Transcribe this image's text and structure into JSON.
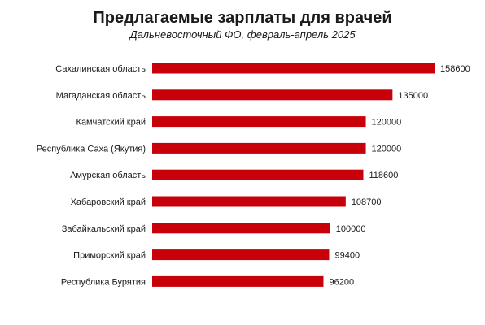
{
  "chart_data": {
    "type": "bar",
    "orientation": "horizontal",
    "title": "Предлагаемые зарплаты для врачей",
    "subtitle": "Дальневосточный ФО, февраль-апрель 2025",
    "categories": [
      "Сахалинская область",
      "Магаданская область",
      "Камчатский край",
      "Республика Саха (Якутия)",
      "Амурская область",
      "Хабаровский край",
      "Забайкальский край",
      "Приморский край",
      "Республика Бурятия"
    ],
    "values": [
      158600,
      135000,
      120000,
      120000,
      118600,
      108700,
      100000,
      99400,
      96200
    ],
    "data_labels": [
      "158600",
      "135000",
      "120000",
      "120000",
      "118600",
      "108700",
      "100000",
      "99400",
      "96200"
    ],
    "xlim": [
      0,
      158600
    ],
    "grid": false,
    "bar_color": "#c8000a"
  }
}
